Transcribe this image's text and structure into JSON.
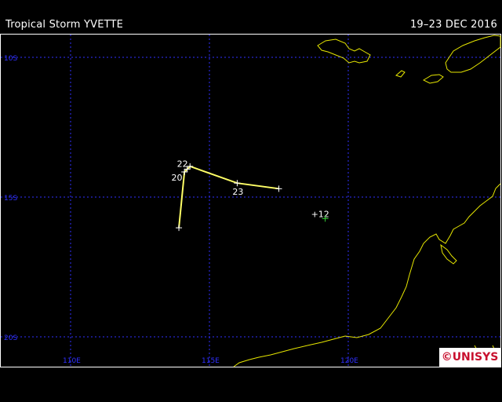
{
  "header": {
    "title": "Tropical Storm YVETTE",
    "date_range": "19–23 DEC 2016"
  },
  "map": {
    "lat_labels": [
      "10S",
      "15S",
      "20S"
    ],
    "lon_labels": [
      "110E",
      "115E",
      "120E"
    ],
    "lat_values": [
      -10,
      -15,
      -20
    ],
    "lon_values": [
      110,
      115,
      120
    ],
    "grid_color": "#3030ff",
    "coast_color": "#e6e600",
    "track_color": "#ffff66"
  },
  "track": {
    "points": [
      {
        "lat": -16.1,
        "lon": 113.9
      },
      {
        "lat": -14.1,
        "lon": 114.1
      },
      {
        "lat": -14.0,
        "lon": 114.2
      },
      {
        "lat": -13.9,
        "lon": 114.3
      },
      {
        "lat": -14.5,
        "lon": 116.0
      },
      {
        "lat": -14.7,
        "lon": 117.5
      }
    ],
    "day_labels": [
      {
        "text": "22",
        "lat": -13.8,
        "lon": 114.0
      },
      {
        "text": "20",
        "lat": -14.3,
        "lon": 113.8
      },
      {
        "text": "23",
        "lat": -14.8,
        "lon": 116.0
      }
    ]
  },
  "other_storm": {
    "label": "+12",
    "lat": -15.6,
    "lon": 119.0
  },
  "logo": {
    "text": "©UNISYS",
    "color": "#c8102e"
  }
}
